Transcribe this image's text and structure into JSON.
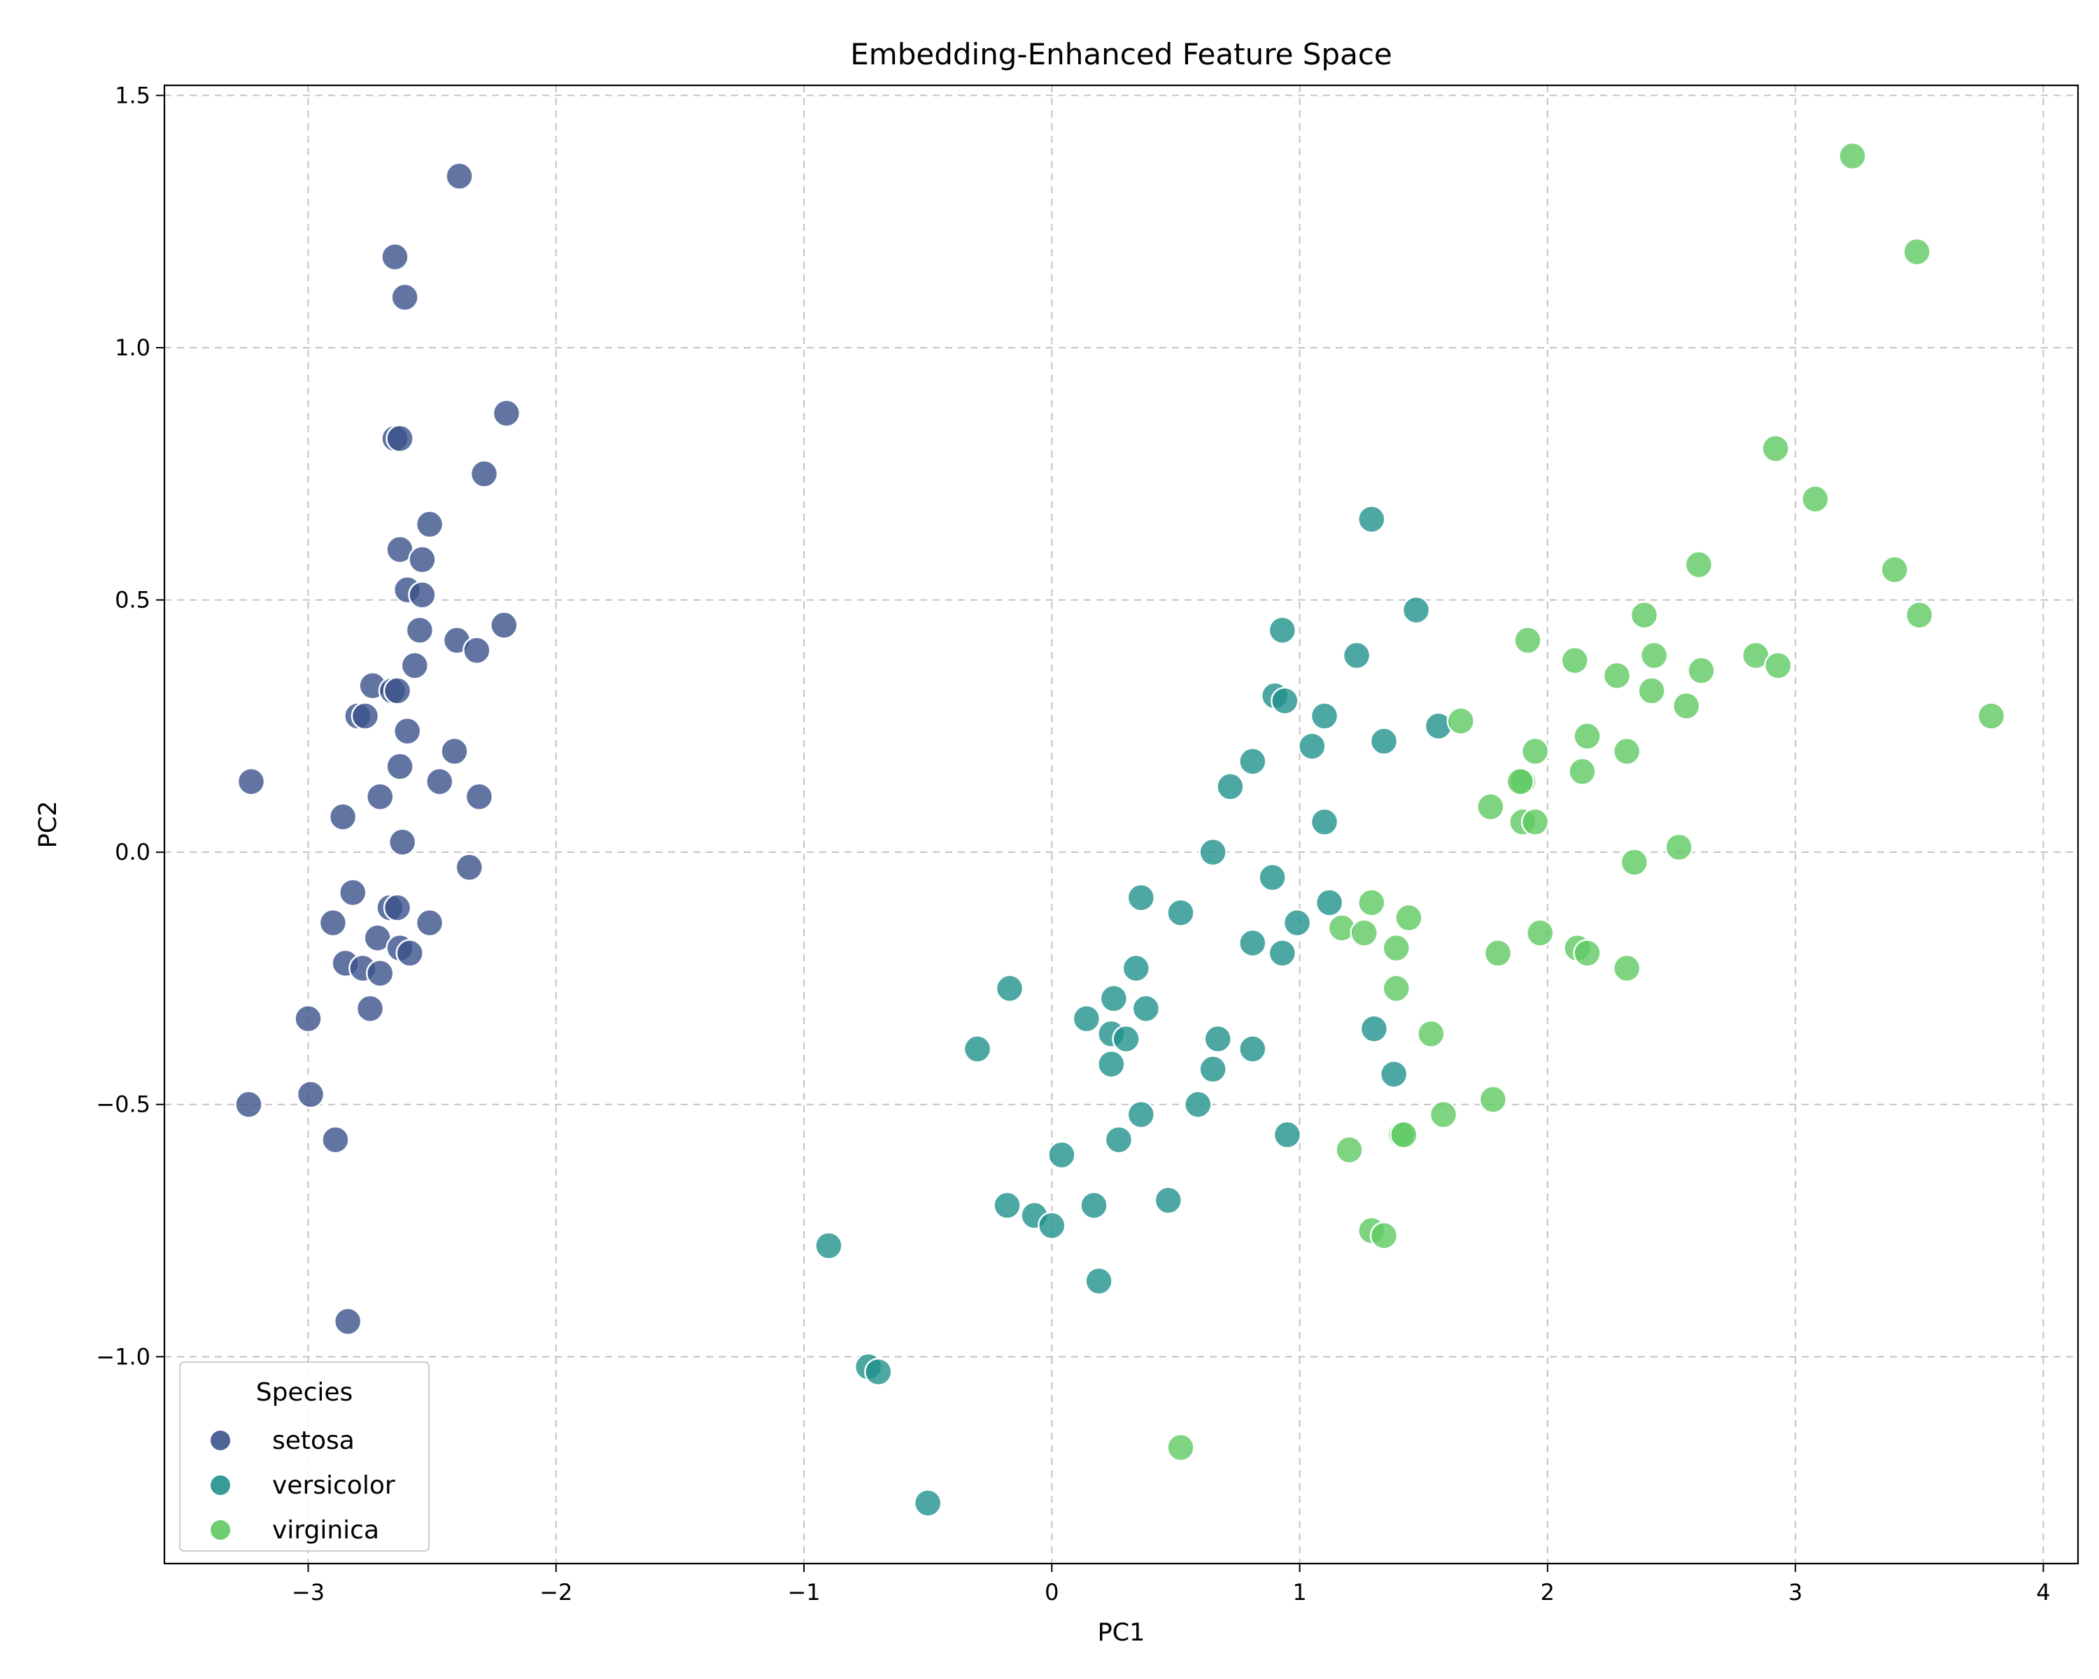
{
  "chart_data": {
    "type": "scatter",
    "title": "Embedding-Enhanced Feature Space",
    "xlabel": "PC1",
    "ylabel": "PC2",
    "xlim": [
      -3.58,
      4.14
    ],
    "ylim": [
      -1.41,
      1.52
    ],
    "xticks": [
      -3,
      -2,
      -1,
      0,
      1,
      2,
      3,
      4
    ],
    "yticks": [
      -1.0,
      -0.5,
      0.0,
      0.5,
      1.0,
      1.5
    ],
    "xtick_labels": [
      "−3",
      "−2",
      "−1",
      "0",
      "1",
      "2",
      "3",
      "4"
    ],
    "ytick_labels": [
      "−1.0",
      "−0.5",
      "0.0",
      "0.5",
      "1.0",
      "1.5"
    ],
    "grid": true,
    "legend": {
      "title": "Species",
      "placement": "lower-left"
    },
    "series": [
      {
        "name": "setosa",
        "color": "#3b528b",
        "points": [
          [
            -2.39,
            1.34
          ],
          [
            -2.65,
            1.18
          ],
          [
            -2.61,
            1.1
          ],
          [
            -2.2,
            0.87
          ],
          [
            -2.65,
            0.82
          ],
          [
            -2.63,
            0.82
          ],
          [
            -2.29,
            0.75
          ],
          [
            -2.51,
            0.65
          ],
          [
            -2.63,
            0.6
          ],
          [
            -2.54,
            0.58
          ],
          [
            -2.6,
            0.52
          ],
          [
            -2.54,
            0.51
          ],
          [
            -2.55,
            0.44
          ],
          [
            -2.21,
            0.45
          ],
          [
            -2.4,
            0.42
          ],
          [
            -2.32,
            0.4
          ],
          [
            -2.57,
            0.37
          ],
          [
            -2.74,
            0.33
          ],
          [
            -2.66,
            0.32
          ],
          [
            -2.64,
            0.32
          ],
          [
            -2.8,
            0.27
          ],
          [
            -2.77,
            0.27
          ],
          [
            -2.6,
            0.24
          ],
          [
            -2.41,
            0.2
          ],
          [
            -2.63,
            0.17
          ],
          [
            -2.47,
            0.14
          ],
          [
            -3.23,
            0.14
          ],
          [
            -2.71,
            0.11
          ],
          [
            -2.31,
            0.11
          ],
          [
            -2.86,
            0.07
          ],
          [
            -2.62,
            0.02
          ],
          [
            -2.35,
            -0.03
          ],
          [
            -2.82,
            -0.08
          ],
          [
            -2.67,
            -0.11
          ],
          [
            -2.64,
            -0.11
          ],
          [
            -2.51,
            -0.14
          ],
          [
            -2.9,
            -0.14
          ],
          [
            -2.72,
            -0.17
          ],
          [
            -2.63,
            -0.19
          ],
          [
            -2.59,
            -0.2
          ],
          [
            -2.85,
            -0.22
          ],
          [
            -2.78,
            -0.23
          ],
          [
            -2.71,
            -0.24
          ],
          [
            -2.75,
            -0.31
          ],
          [
            -3.0,
            -0.33
          ],
          [
            -2.99,
            -0.48
          ],
          [
            -3.24,
            -0.5
          ],
          [
            -2.89,
            -0.57
          ],
          [
            -2.84,
            -0.93
          ]
        ]
      },
      {
        "name": "versicolor",
        "color": "#21918c",
        "points": [
          [
            1.29,
            0.66
          ],
          [
            1.47,
            0.48
          ],
          [
            0.93,
            0.44
          ],
          [
            1.23,
            0.39
          ],
          [
            0.9,
            0.31
          ],
          [
            0.94,
            0.3
          ],
          [
            1.1,
            0.27
          ],
          [
            1.56,
            0.25
          ],
          [
            1.34,
            0.22
          ],
          [
            1.05,
            0.21
          ],
          [
            0.81,
            0.18
          ],
          [
            0.72,
            0.13
          ],
          [
            1.1,
            0.06
          ],
          [
            0.65,
            0.0
          ],
          [
            0.89,
            -0.05
          ],
          [
            0.36,
            -0.09
          ],
          [
            1.12,
            -0.1
          ],
          [
            0.52,
            -0.12
          ],
          [
            0.99,
            -0.14
          ],
          [
            0.81,
            -0.18
          ],
          [
            0.93,
            -0.2
          ],
          [
            0.34,
            -0.23
          ],
          [
            -0.17,
            -0.27
          ],
          [
            0.25,
            -0.29
          ],
          [
            0.38,
            -0.31
          ],
          [
            0.14,
            -0.33
          ],
          [
            1.3,
            -0.35
          ],
          [
            0.24,
            -0.36
          ],
          [
            0.3,
            -0.37
          ],
          [
            0.67,
            -0.37
          ],
          [
            -0.3,
            -0.39
          ],
          [
            0.81,
            -0.39
          ],
          [
            0.24,
            -0.42
          ],
          [
            0.65,
            -0.43
          ],
          [
            1.38,
            -0.44
          ],
          [
            0.59,
            -0.5
          ],
          [
            0.36,
            -0.52
          ],
          [
            0.95,
            -0.56
          ],
          [
            0.27,
            -0.57
          ],
          [
            0.04,
            -0.6
          ],
          [
            0.47,
            -0.69
          ],
          [
            -0.18,
            -0.7
          ],
          [
            0.17,
            -0.7
          ],
          [
            -0.07,
            -0.72
          ],
          [
            0.0,
            -0.74
          ],
          [
            -0.9,
            -0.78
          ],
          [
            0.19,
            -0.85
          ],
          [
            -0.74,
            -1.02
          ],
          [
            -0.7,
            -1.03
          ],
          [
            -0.5,
            -1.29
          ]
        ]
      },
      {
        "name": "virginica",
        "color": "#5ec962",
        "points": [
          [
            3.23,
            1.38
          ],
          [
            3.49,
            1.19
          ],
          [
            2.92,
            0.8
          ],
          [
            3.08,
            0.7
          ],
          [
            2.61,
            0.57
          ],
          [
            3.4,
            0.56
          ],
          [
            3.5,
            0.47
          ],
          [
            2.39,
            0.47
          ],
          [
            1.92,
            0.42
          ],
          [
            2.43,
            0.39
          ],
          [
            2.84,
            0.39
          ],
          [
            2.11,
            0.38
          ],
          [
            2.93,
            0.37
          ],
          [
            2.28,
            0.35
          ],
          [
            2.62,
            0.36
          ],
          [
            2.42,
            0.32
          ],
          [
            2.56,
            0.29
          ],
          [
            3.79,
            0.27
          ],
          [
            1.65,
            0.26
          ],
          [
            2.16,
            0.23
          ],
          [
            1.95,
            0.2
          ],
          [
            2.32,
            0.2
          ],
          [
            2.14,
            0.16
          ],
          [
            1.9,
            0.14
          ],
          [
            1.89,
            0.14
          ],
          [
            1.77,
            0.09
          ],
          [
            1.9,
            0.06
          ],
          [
            1.95,
            0.06
          ],
          [
            2.53,
            0.01
          ],
          [
            2.35,
            -0.02
          ],
          [
            1.29,
            -0.1
          ],
          [
            1.44,
            -0.13
          ],
          [
            1.17,
            -0.15
          ],
          [
            1.26,
            -0.16
          ],
          [
            1.97,
            -0.16
          ],
          [
            1.39,
            -0.19
          ],
          [
            2.12,
            -0.19
          ],
          [
            2.16,
            -0.2
          ],
          [
            1.8,
            -0.2
          ],
          [
            2.32,
            -0.23
          ],
          [
            1.39,
            -0.27
          ],
          [
            1.53,
            -0.36
          ],
          [
            1.78,
            -0.49
          ],
          [
            1.58,
            -0.52
          ],
          [
            1.41,
            -0.56
          ],
          [
            1.42,
            -0.56
          ],
          [
            1.2,
            -0.59
          ],
          [
            1.29,
            -0.75
          ],
          [
            1.34,
            -0.76
          ],
          [
            0.52,
            -1.18
          ]
        ]
      }
    ]
  }
}
